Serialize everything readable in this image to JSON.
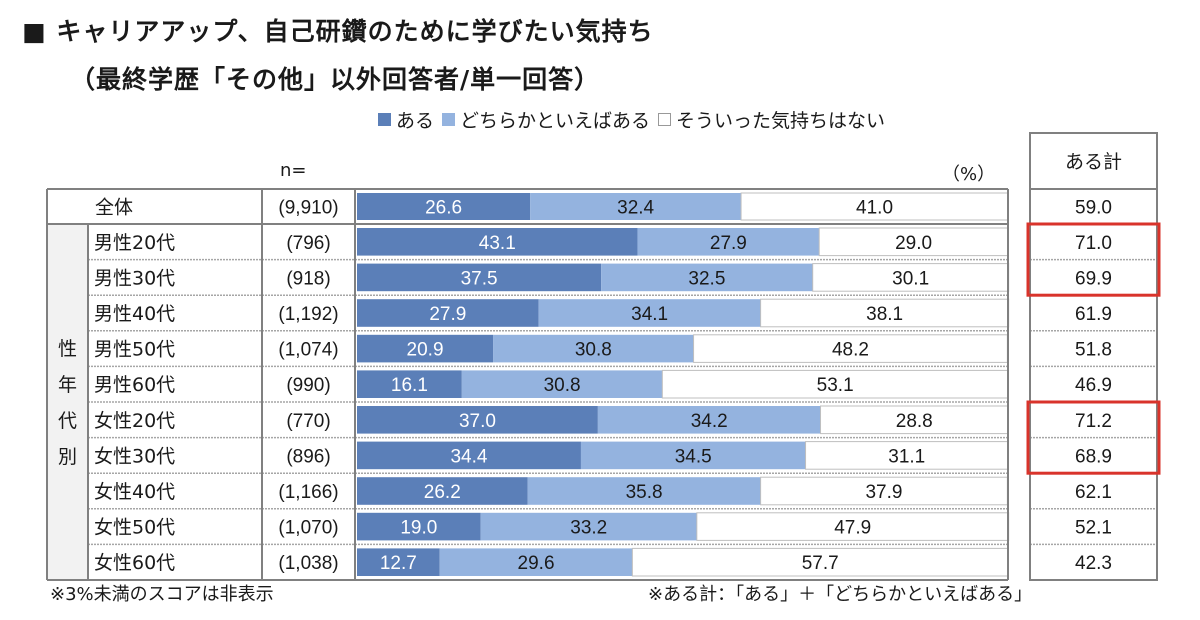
{
  "title": "■ キャリアアップ、自己研鑽のために学びたい気持ち",
  "subtitle": "（最終学歴「その他」以外回答者/単一回答）",
  "legend": [
    {
      "label": "ある",
      "color": "#5b7fb8"
    },
    {
      "label": "どちらかといえばある",
      "color": "#94b3df"
    },
    {
      "label": "そういった気持ちはない",
      "color": "#ffffff"
    }
  ],
  "n_label": "n=",
  "unit_label": "（%）",
  "total_header": "ある計",
  "group_label": "性年代別",
  "notes": {
    "left": "※3%未満のスコアは非表示",
    "right": "※ある計：「ある」＋「どちらかといえばある」"
  },
  "colors": {
    "aru": "#5b7fb8",
    "dochiraka": "#94b3df",
    "nai": "#ffffff",
    "border": "#808080",
    "highlight": "#d9332b",
    "group_bg": "#f2f2f2"
  },
  "chart_data": {
    "type": "bar",
    "orientation": "horizontal-stacked-100",
    "title": "キャリアアップ、自己研鑽のために学びたい気持ち",
    "subtitle": "（最終学歴「その他」以外回答者/単一回答）",
    "unit": "%",
    "xlim": [
      0,
      100
    ],
    "legend_position": "top-right",
    "categories": [
      "全体",
      "男性20代",
      "男性30代",
      "男性40代",
      "男性50代",
      "男性60代",
      "女性20代",
      "女性30代",
      "女性40代",
      "女性50代",
      "女性60代"
    ],
    "n": [
      "(9,910)",
      "(796)",
      "(918)",
      "(1,192)",
      "(1,074)",
      "(990)",
      "(770)",
      "(896)",
      "(1,166)",
      "(1,070)",
      "(1,038)"
    ],
    "series": [
      {
        "name": "ある",
        "values": [
          26.6,
          43.1,
          37.5,
          27.9,
          20.9,
          16.1,
          37.0,
          34.4,
          26.2,
          19.0,
          12.7
        ]
      },
      {
        "name": "どちらかといえばある",
        "values": [
          32.4,
          27.9,
          32.5,
          34.1,
          30.8,
          30.8,
          34.2,
          34.5,
          35.8,
          33.2,
          29.6
        ]
      },
      {
        "name": "そういった気持ちはない",
        "values": [
          41.0,
          29.0,
          30.1,
          38.1,
          48.2,
          53.1,
          28.8,
          31.1,
          37.9,
          47.9,
          57.7
        ]
      }
    ],
    "total_label": "ある計",
    "totals": [
      "59.0",
      "71.0",
      "69.9",
      "61.9",
      "51.8",
      "46.9",
      "71.2",
      "68.9",
      "62.1",
      "52.1",
      "42.3"
    ],
    "highlighted_rows": [
      1,
      2,
      6,
      7
    ]
  }
}
